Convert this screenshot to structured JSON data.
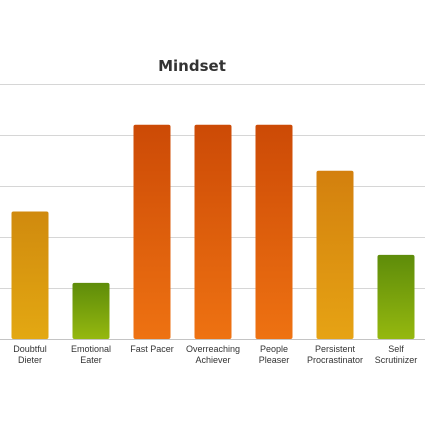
{
  "chart_data": {
    "type": "bar",
    "title": "Mindset",
    "xlabel": "",
    "ylabel": "",
    "ylim": [
      0,
      5
    ],
    "grid": true,
    "legend": "none",
    "categories": [
      [
        "Doubtful",
        "Dieter"
      ],
      [
        "Emotional",
        "Eater"
      ],
      [
        "Fast Pacer"
      ],
      [
        "Overreaching",
        "Achiever"
      ],
      [
        "People",
        "Pleaser"
      ],
      [
        "Persistent",
        "Procrastinator"
      ],
      [
        "Self",
        "Scrutinizer"
      ]
    ],
    "values": [
      2.5,
      1.1,
      4.2,
      4.2,
      4.2,
      3.3,
      1.65
    ],
    "colors": [
      [
        "#e3a812",
        "#d08a0e"
      ],
      [
        "#95b80f",
        "#5e8c0a"
      ],
      [
        "#ee7212",
        "#cc4a06"
      ],
      [
        "#ee7212",
        "#cc4a06"
      ],
      [
        "#ee7212",
        "#cc4a06"
      ],
      [
        "#e6a314",
        "#d3800e"
      ],
      [
        "#95b80f",
        "#5e8c0a"
      ]
    ]
  }
}
